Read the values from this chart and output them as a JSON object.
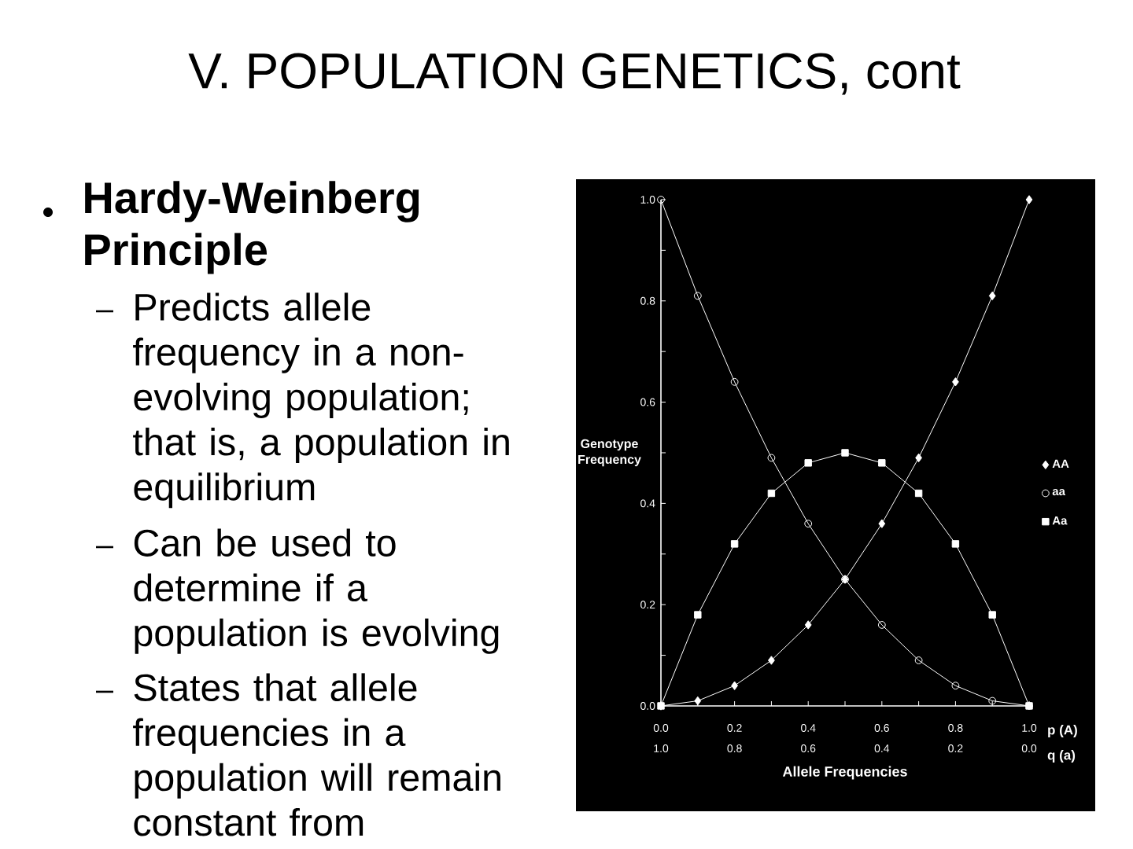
{
  "chart_data": {
    "type": "line",
    "title": "V.  POPULATION GENETICS, cont",
    "annotations": [
      "Hardy-Weinberg Principle",
      "Predicts allele frequency in a non-evolving population; that is, a population in equilibrium",
      "Can be used to determine if a population is evolving",
      "States that allele frequencies in a population will remain constant from",
      "p (A)",
      "q (a)"
    ],
    "ylabel": "Genotype Frequency",
    "xlabel": "Allele Frequencies",
    "x": [
      0,
      0.1,
      0.2,
      0.3,
      0.4,
      0.5,
      0.6,
      0.7,
      0.8,
      0.9,
      1.0
    ],
    "series": [
      {
        "name": "AA",
        "color": "#ffffff",
        "marker": "diamond",
        "values": [
          0,
          0.01,
          0.04,
          0.09,
          0.16,
          0.25,
          0.36,
          0.49,
          0.64,
          0.81,
          1.0
        ]
      },
      {
        "name": "aa",
        "color": "#ffffff",
        "marker": "circle",
        "values": [
          1.0,
          0.81,
          0.64,
          0.49,
          0.36,
          0.25,
          0.16,
          0.09,
          0.04,
          0.01,
          0
        ]
      },
      {
        "name": "Aa",
        "color": "#ffffff",
        "marker": "square",
        "values": [
          0,
          0.18,
          0.32,
          0.42,
          0.48,
          0.5,
          0.48,
          0.42,
          0.32,
          0.18,
          0
        ]
      }
    ],
    "xlim": [
      0,
      1
    ],
    "ylim": [
      0,
      1
    ],
    "xticks": [
      {
        "value": 0,
        "label": "0.0"
      },
      {
        "value": 0.1,
        "label": null
      },
      {
        "value": 0.2,
        "label": "0.2"
      },
      {
        "value": 0.3,
        "label": null
      },
      {
        "value": 0.4,
        "label": "0.4"
      },
      {
        "value": 0.5,
        "label": null
      },
      {
        "value": 0.6,
        "label": "0.6"
      },
      {
        "value": 0.7,
        "label": null
      },
      {
        "value": 0.8,
        "label": "0.8"
      },
      {
        "value": 0.9,
        "label": null
      },
      {
        "value": 1,
        "label": "1.0"
      }
    ],
    "x2lim": [
      1,
      0
    ],
    "x2ticks": [
      {
        "value": 1,
        "label": "1.0"
      },
      {
        "value": 0.8,
        "label": "0.8"
      },
      {
        "value": 0.6,
        "label": "0.6"
      },
      {
        "value": 0.4,
        "label": "0.4"
      },
      {
        "value": 0.2,
        "label": "0.2"
      },
      {
        "value": 0,
        "label": "0.0"
      }
    ],
    "yticks": [
      {
        "value": 0,
        "label": "0.0"
      },
      {
        "value": 0.1,
        "label": null
      },
      {
        "value": 0.2,
        "label": "0.2"
      },
      {
        "value": 0.3,
        "label": null
      },
      {
        "value": 0.4,
        "label": "0.4"
      },
      {
        "value": 0.5,
        "label": null
      },
      {
        "value": 0.6,
        "label": "0.6"
      },
      {
        "value": 0.7,
        "label": null
      },
      {
        "value": 0.8,
        "label": "0.8"
      },
      {
        "value": 0.9,
        "label": null
      },
      {
        "value": 1,
        "label": "1.0"
      }
    ],
    "legend": "right",
    "line_style": "solid"
  }
}
